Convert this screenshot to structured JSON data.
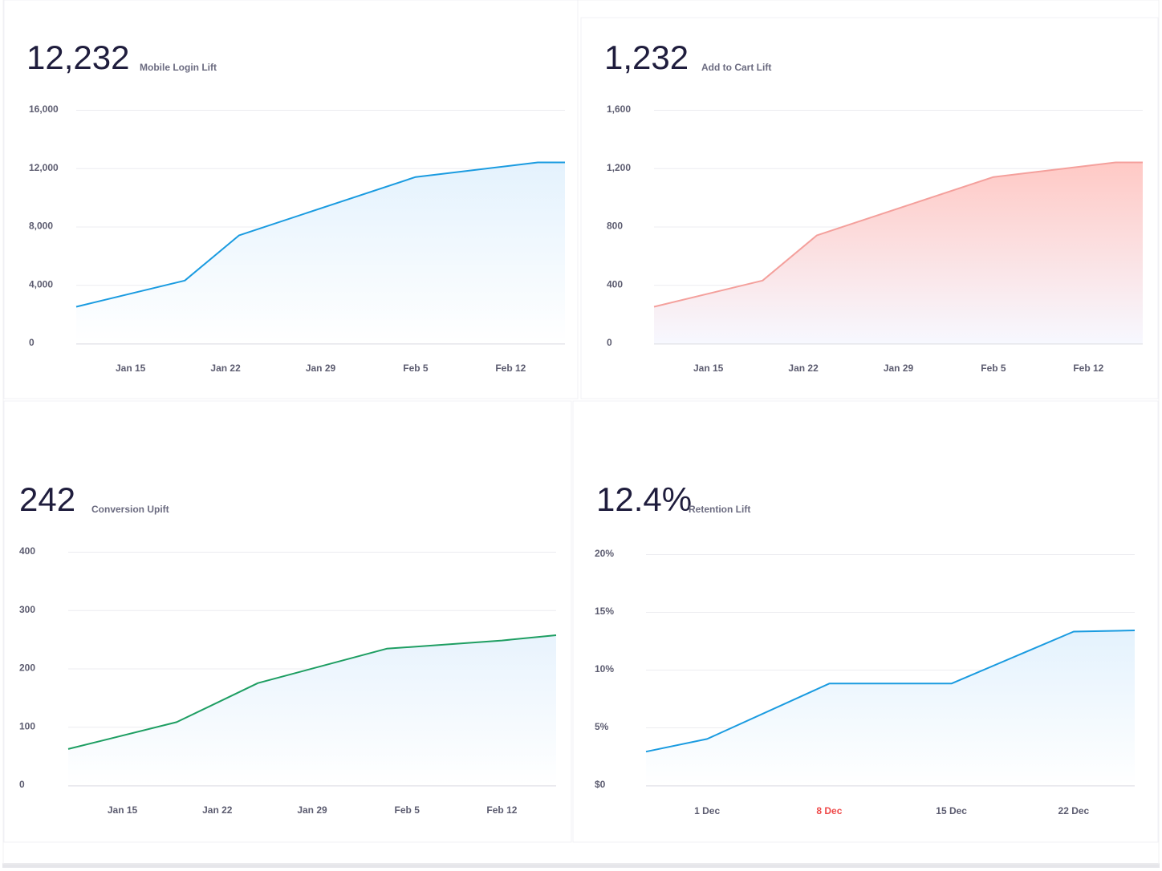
{
  "chart_data": [
    {
      "type": "line",
      "headline": "12,232",
      "title": "Mobile Login Lift",
      "x": [
        11,
        19,
        23,
        36,
        45,
        47
      ],
      "values": [
        2500,
        4300,
        7400,
        11400,
        12400,
        12400
      ],
      "color": "#1a9be0",
      "fill_colors": [
        "#e4f2fd",
        "#ffffff"
      ],
      "xlim": [
        11,
        47
      ],
      "xticks": [
        {
          "value": 15,
          "label": "Jan 15"
        },
        {
          "value": 22,
          "label": "Jan 22"
        },
        {
          "value": 29,
          "label": "Jan 29"
        },
        {
          "value": 36,
          "label": "Feb 5"
        },
        {
          "value": 43,
          "label": "Feb 12"
        }
      ],
      "ylim": [
        0,
        16000
      ],
      "yticks": [
        0,
        {
          "value": 4000,
          "label": "4,000"
        },
        {
          "value": 8000,
          "label": "8,000"
        },
        {
          "value": 12000,
          "label": "12,000"
        },
        {
          "value": 16000,
          "label": "16,000"
        }
      ],
      "grid": true
    },
    {
      "type": "line",
      "headline": "1,232",
      "title": "Add to Cart Lift",
      "x": [
        11,
        19,
        23,
        36,
        45,
        47
      ],
      "values": [
        250,
        430,
        740,
        1140,
        1240,
        1240
      ],
      "color": "#f4a09c",
      "fill_colors": [
        "#ffc9c5",
        "#f7f8ff"
      ],
      "xlim": [
        11,
        47
      ],
      "xticks": [
        {
          "value": 15,
          "label": "Jan 15"
        },
        {
          "value": 22,
          "label": "Jan 22"
        },
        {
          "value": 29,
          "label": "Jan 29"
        },
        {
          "value": 36,
          "label": "Feb 5"
        },
        {
          "value": 43,
          "label": "Feb 12"
        }
      ],
      "ylim": [
        0,
        1600
      ],
      "yticks": [
        0,
        400,
        800,
        {
          "value": 1200,
          "label": "1,200"
        },
        {
          "value": 1600,
          "label": "1,600"
        }
      ],
      "grid": true
    },
    {
      "type": "line",
      "headline": "242",
      "title": "Conversion Upift",
      "x": [
        11,
        19,
        25,
        34.5,
        43,
        47
      ],
      "values": [
        62,
        108,
        175,
        234,
        248,
        257
      ],
      "color": "#1e9e62",
      "fill_colors": [
        "#e8f3fd",
        "#ffffff"
      ],
      "xlim": [
        11,
        47
      ],
      "xticks": [
        {
          "value": 15,
          "label": "Jan 15"
        },
        {
          "value": 22,
          "label": "Jan 22"
        },
        {
          "value": 29,
          "label": "Jan 29"
        },
        {
          "value": 36,
          "label": "Feb 5"
        },
        {
          "value": 43,
          "label": "Feb 12"
        }
      ],
      "ylim": [
        0,
        400
      ],
      "yticks": [
        0,
        100,
        200,
        300,
        400
      ],
      "grid": true
    },
    {
      "type": "line",
      "headline": "12.4%",
      "title": "Retention Lift",
      "x": [
        -2.5,
        1,
        8,
        15,
        22,
        25.5
      ],
      "values": [
        2.9,
        4.0,
        8.8,
        8.8,
        13.3,
        13.4
      ],
      "color": "#1a9be0",
      "fill_colors": [
        "#e4f2fd",
        "#ffffff"
      ],
      "xlim": [
        -2.5,
        25.5
      ],
      "xticks": [
        {
          "value": 1,
          "label": "1 Dec"
        },
        {
          "value": 8,
          "label": "8 Dec",
          "color": "#ef4a4a"
        },
        {
          "value": 15,
          "label": "15 Dec"
        },
        {
          "value": 22,
          "label": "22 Dec"
        }
      ],
      "ylim": [
        0,
        20
      ],
      "yticks": [
        {
          "value": 0,
          "label": "$0"
        },
        {
          "value": 5,
          "label": "5%"
        },
        {
          "value": 10,
          "label": "10%"
        },
        {
          "value": 15,
          "label": "15%"
        },
        {
          "value": 20,
          "label": "20%"
        }
      ],
      "grid": true
    }
  ]
}
